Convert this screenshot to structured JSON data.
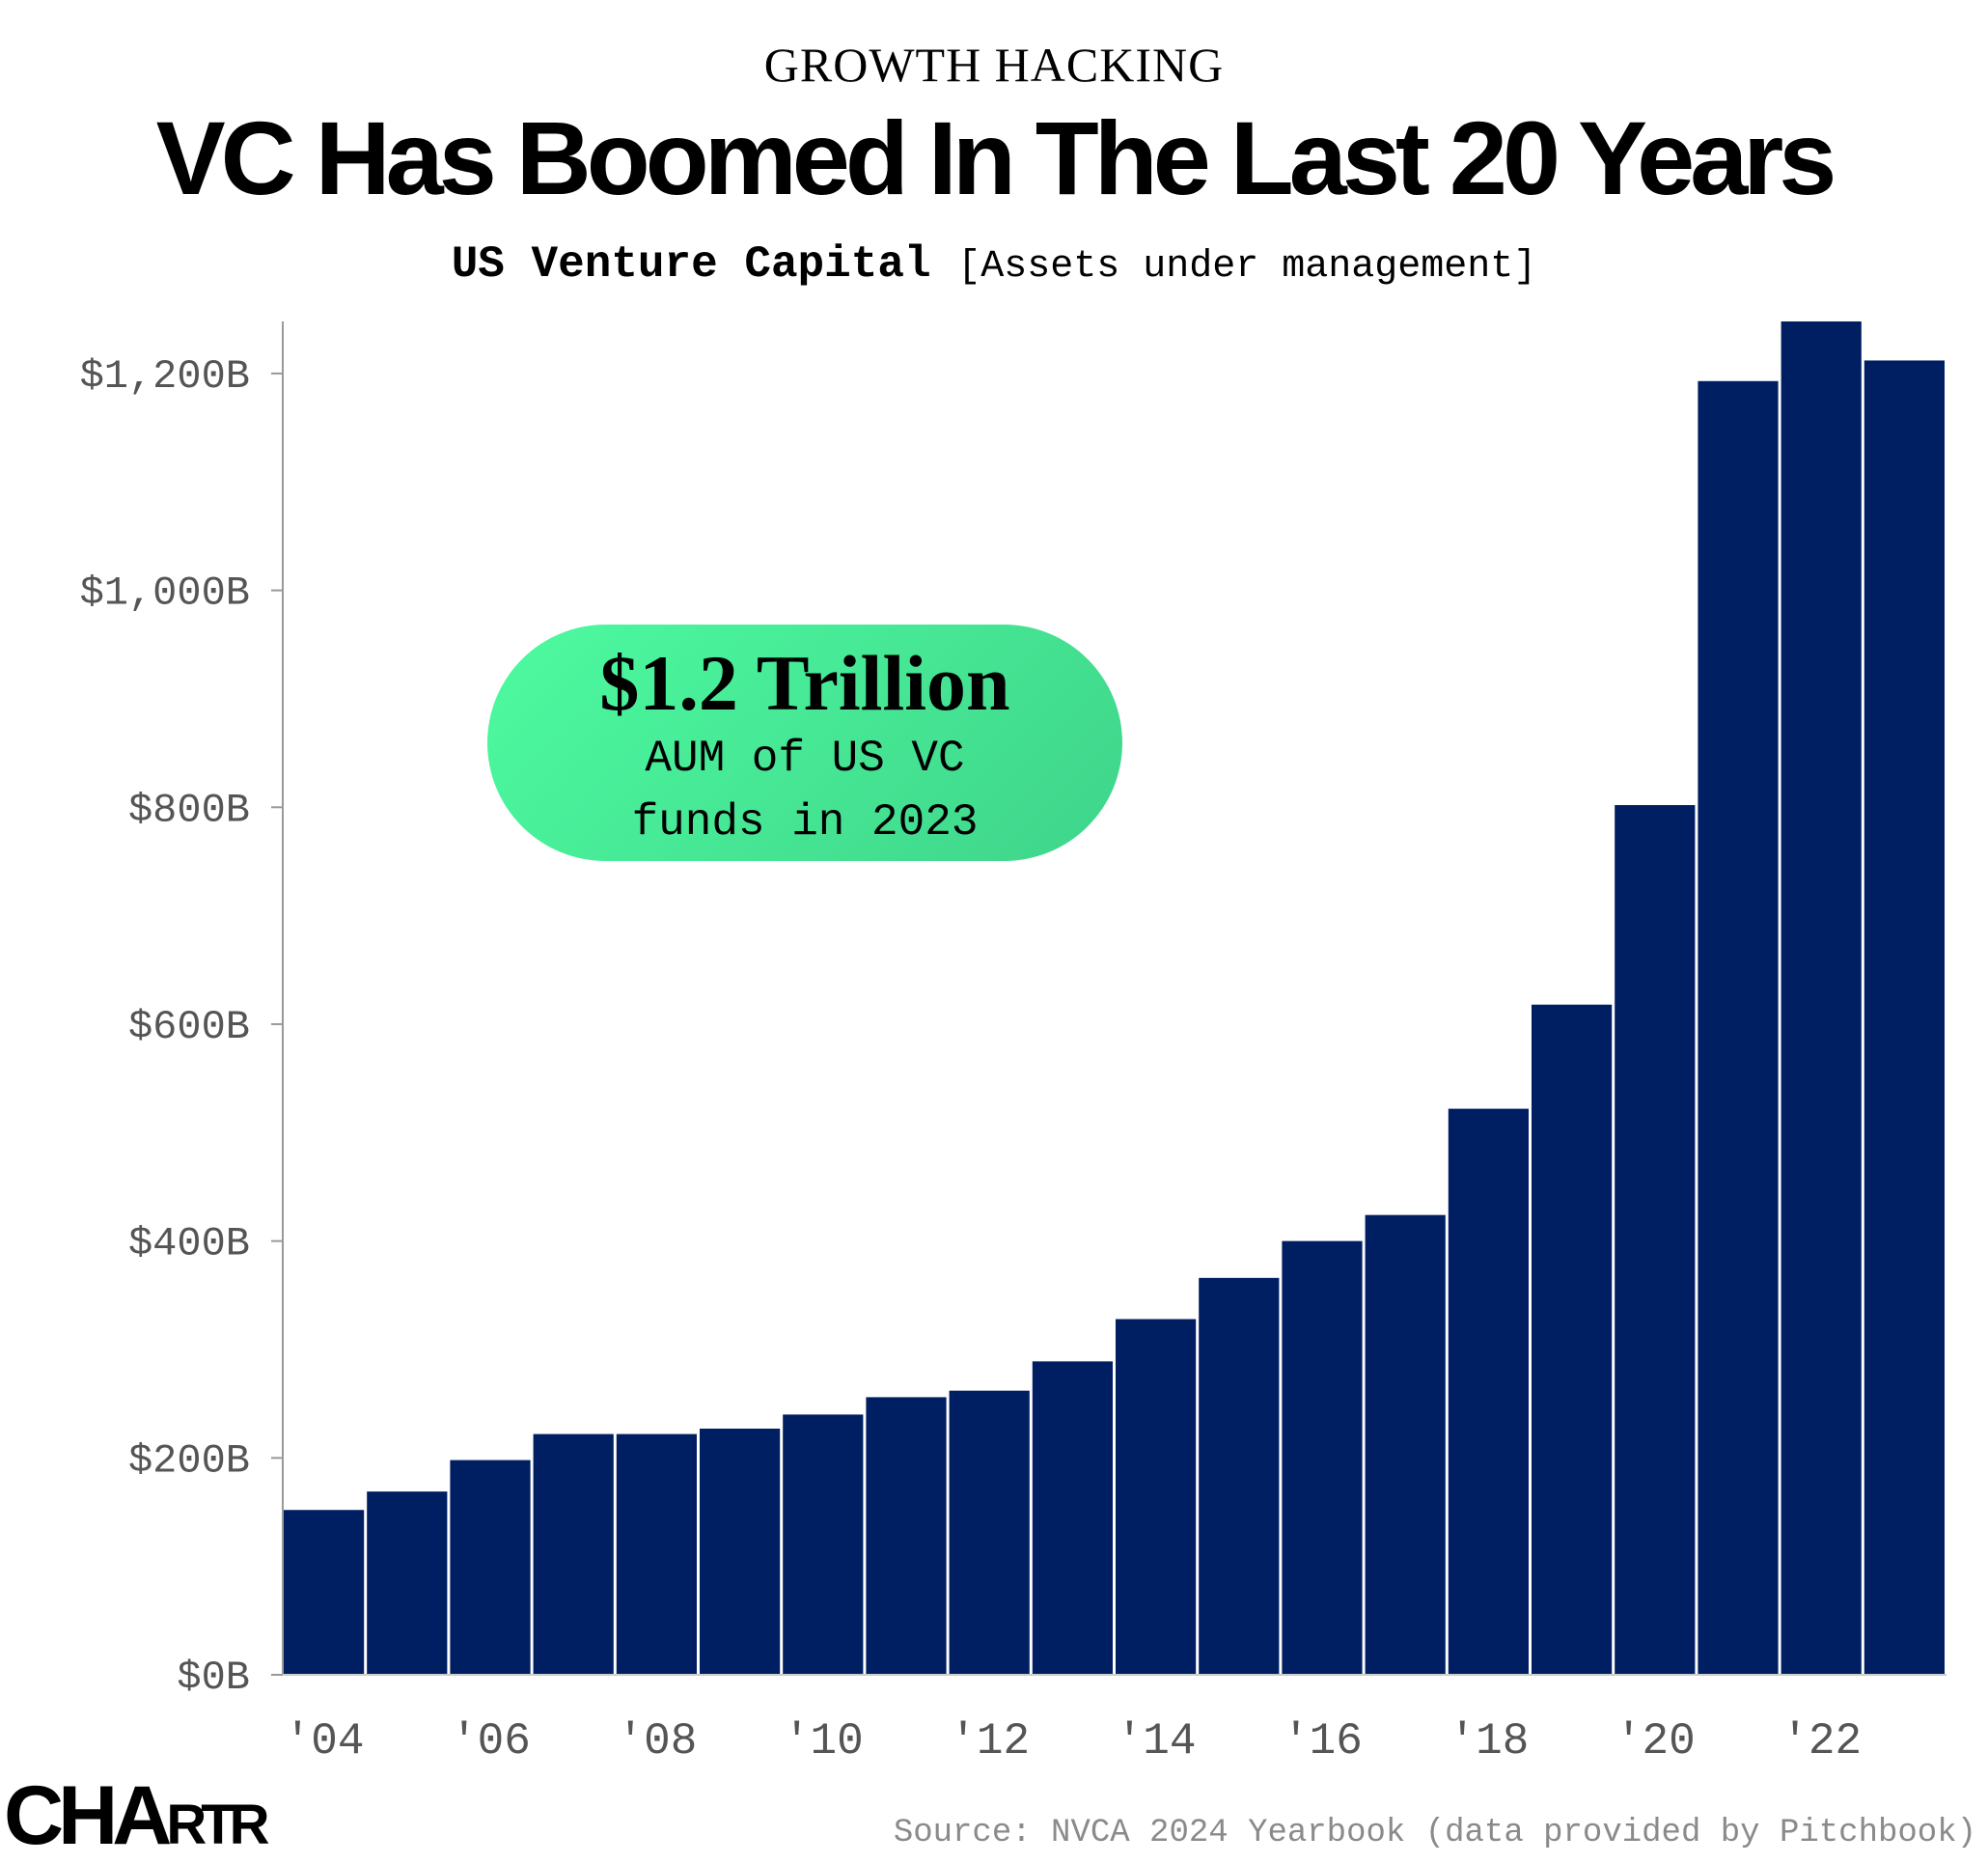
{
  "kicker": "GROWTH HACKING",
  "title": "VC Has Boomed In The Last 20 Years",
  "subtitle": {
    "main": "US Venture Capital",
    "unit": "[Assets under management]"
  },
  "annotation": {
    "headline": "$1.2 Trillion",
    "line1": "AUM of US VC",
    "line2": "funds in 2023",
    "color": "#4dfba0"
  },
  "logo": "CHARTR",
  "source": "Source: NVCA 2024 Yearbook (data provided by Pitchbook)",
  "chart_data": {
    "type": "bar",
    "categories": [
      "2004",
      "2005",
      "2006",
      "2007",
      "2008",
      "2009",
      "2010",
      "2011",
      "2012",
      "2013",
      "2014",
      "2015",
      "2016",
      "2017",
      "2018",
      "2019",
      "2020",
      "2021",
      "2022",
      "2023"
    ],
    "values": [
      152,
      169,
      198,
      222,
      222,
      227,
      240,
      256,
      262,
      289,
      328,
      366,
      400,
      424,
      522,
      618,
      802,
      1193,
      1248,
      1212
    ],
    "unit": "$B",
    "ylim": [
      0,
      1248
    ],
    "yticks": [
      0,
      200,
      400,
      600,
      800,
      1000,
      1200
    ],
    "ytick_labels": [
      "$0B",
      "$200B",
      "$400B",
      "$600B",
      "$800B",
      "$1,000B",
      "$1,200B"
    ],
    "xtick_labels": [
      "'04",
      "'06",
      "'08",
      "'10",
      "'12",
      "'14",
      "'16",
      "'18",
      "'20",
      "'22"
    ],
    "bar_color": "#001f62",
    "grid": false
  }
}
